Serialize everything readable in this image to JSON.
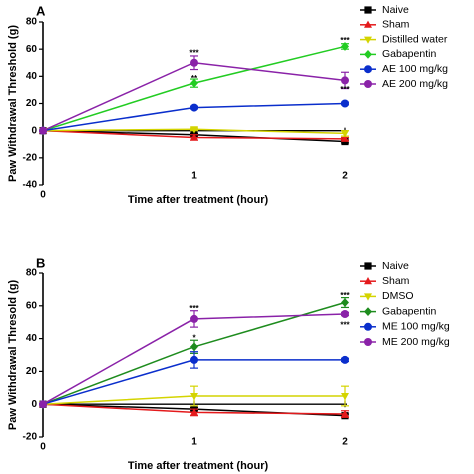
{
  "chart_data": [
    {
      "type": "line",
      "panel_label": "A",
      "xlabel": "Time after treatment (hour)",
      "ylabel": "Paw Withdrawal Threshold (g)",
      "x": [
        0,
        1,
        2
      ],
      "xticks": [
        "0",
        "1",
        "2"
      ],
      "ylim": [
        -40,
        80
      ],
      "yticks": [
        "-40",
        "-20",
        "0",
        "20",
        "40",
        "60",
        "80"
      ],
      "legend_position": "right",
      "series": [
        {
          "name": "Naive",
          "color": "#000000",
          "marker": "square",
          "values": [
            0,
            -3,
            -8
          ],
          "err": [
            0,
            1,
            1
          ]
        },
        {
          "name": "Sham",
          "color": "#e41a1c",
          "marker": "triangle-up",
          "values": [
            0,
            -5,
            -6
          ],
          "err": [
            0,
            2,
            1
          ]
        },
        {
          "name": "Distilled water",
          "color": "#d4d400",
          "marker": "triangle-down",
          "values": [
            0,
            1,
            -2
          ],
          "err": [
            0,
            1,
            2
          ]
        },
        {
          "name": "Gabapentin",
          "color": "#22cc22",
          "marker": "diamond",
          "values": [
            0,
            35,
            62
          ],
          "err": [
            0,
            3,
            2
          ]
        },
        {
          "name": "AE 100 mg/kg",
          "color": "#0a2ecc",
          "marker": "circle",
          "values": [
            0,
            17,
            20
          ],
          "err": [
            0,
            1,
            1
          ]
        },
        {
          "name": "AE 200 mg/kg",
          "color": "#8a22a8",
          "marker": "circle",
          "values": [
            0,
            50,
            37
          ],
          "err": [
            0,
            5,
            6
          ]
        }
      ],
      "annotations": [
        {
          "text": "***",
          "x": 1,
          "y": 57
        },
        {
          "text": "**",
          "x": 1,
          "y": 38
        },
        {
          "text": "***",
          "x": 2,
          "y": 66
        },
        {
          "text": "***",
          "x": 2,
          "y": 30
        }
      ]
    },
    {
      "type": "line",
      "panel_label": "B",
      "xlabel": "Time after treatment (hour)",
      "ylabel": "Paw Withdrawal Thresold (g)",
      "x": [
        0,
        1,
        2
      ],
      "xticks": [
        "0",
        "1",
        "2"
      ],
      "ylim": [
        -20,
        80
      ],
      "yticks": [
        "-20",
        "0",
        "20",
        "40",
        "60",
        "80"
      ],
      "legend_position": "right",
      "series": [
        {
          "name": "Naive",
          "color": "#000000",
          "marker": "square",
          "values": [
            0,
            -3,
            -7
          ],
          "err": [
            0,
            1,
            1
          ]
        },
        {
          "name": "Sham",
          "color": "#e41a1c",
          "marker": "triangle-up",
          "values": [
            0,
            -5,
            -6
          ],
          "err": [
            0,
            2,
            2
          ]
        },
        {
          "name": "DMSO",
          "color": "#d4d400",
          "marker": "triangle-down",
          "values": [
            0,
            5,
            5
          ],
          "err": [
            0,
            6,
            6
          ]
        },
        {
          "name": "Gabapentin",
          "color": "#1e8c1e",
          "marker": "diamond",
          "values": [
            0,
            35,
            62
          ],
          "err": [
            0,
            4,
            3
          ]
        },
        {
          "name": "ME 100 mg/kg",
          "color": "#0a2ecc",
          "marker": "circle",
          "values": [
            0,
            27,
            27
          ],
          "err": [
            0,
            5,
            1
          ]
        },
        {
          "name": "ME 200 mg/kg",
          "color": "#8a22a8",
          "marker": "circle",
          "values": [
            0,
            52,
            55
          ],
          "err": [
            0,
            5,
            1
          ]
        }
      ],
      "annotations": [
        {
          "text": "***",
          "x": 1,
          "y": 58
        },
        {
          "text": "*",
          "x": 1,
          "y": 40
        },
        {
          "text": "***",
          "x": 2,
          "y": 66
        },
        {
          "text": "***",
          "x": 2,
          "y": 48
        }
      ]
    }
  ]
}
